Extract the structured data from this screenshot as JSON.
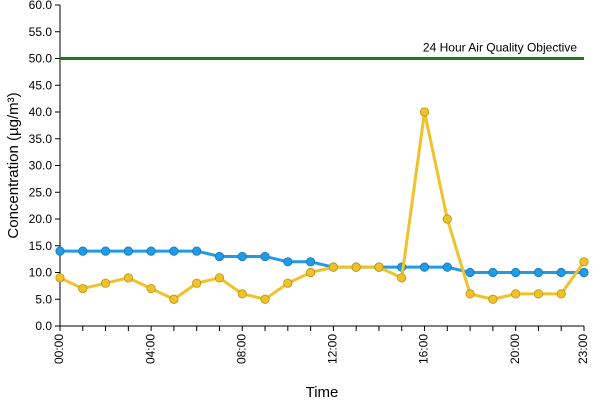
{
  "chart_data": {
    "type": "line",
    "title": "",
    "xlabel": "Time",
    "ylabel": "Concentration (µg/m³)",
    "ylim": [
      0,
      60
    ],
    "y_ticks": [
      "0.0",
      "5.0",
      "10.0",
      "15.0",
      "20.0",
      "25.0",
      "30.0",
      "35.0",
      "40.0",
      "45.0",
      "50.0",
      "55.0",
      "60.0"
    ],
    "x": [
      "00:00",
      "01:00",
      "02:00",
      "03:00",
      "04:00",
      "05:00",
      "06:00",
      "07:00",
      "08:00",
      "09:00",
      "10:00",
      "11:00",
      "12:00",
      "13:00",
      "14:00",
      "15:00",
      "16:00",
      "17:00",
      "18:00",
      "19:00",
      "20:00",
      "21:00",
      "22:00",
      "23:00"
    ],
    "x_tick_labels": [
      "00:00",
      "04:00",
      "08:00",
      "12:00",
      "16:00",
      "20:00",
      "23:00"
    ],
    "grid": false,
    "series": [
      {
        "color": "#1f9be8",
        "values": [
          14,
          14,
          14,
          14,
          14,
          14,
          14,
          13,
          13,
          13,
          12,
          12,
          11,
          11,
          11,
          11,
          11,
          11,
          10,
          10,
          10,
          10,
          10,
          10
        ]
      },
      {
        "color": "#f0c22a",
        "values": [
          9,
          7,
          8,
          9,
          7,
          5,
          8,
          9,
          6,
          5,
          8,
          10,
          11,
          11,
          11,
          9,
          40,
          20,
          6,
          5,
          6,
          6,
          6,
          12
        ]
      }
    ],
    "reference_line": {
      "label": "24 Hour Air Quality Objective",
      "value": 50,
      "color": "#1f7a1f"
    }
  }
}
